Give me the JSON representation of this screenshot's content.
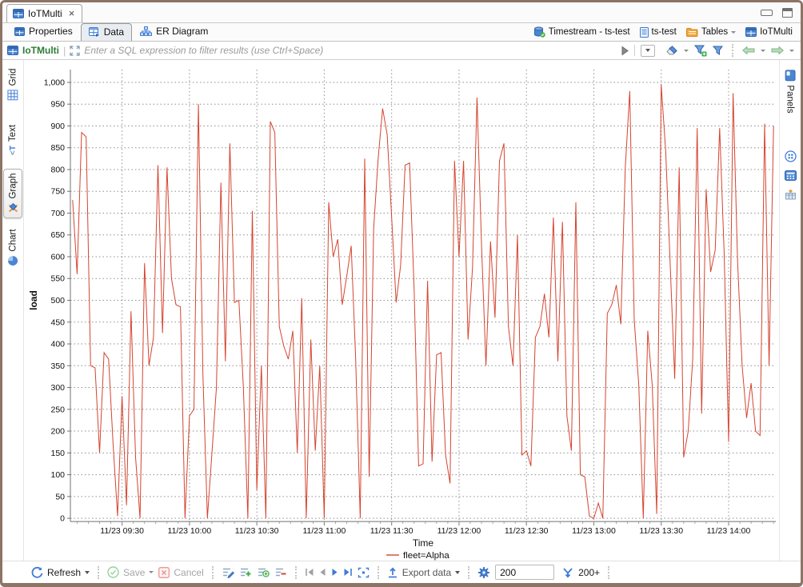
{
  "window": {
    "tab_title": "IoTMulti",
    "close_glyph": "×"
  },
  "subtabs": [
    {
      "label": "Properties",
      "active": false
    },
    {
      "label": "Data",
      "active": true
    },
    {
      "label": "ER Diagram",
      "active": false
    }
  ],
  "breadcrumb": [
    {
      "label": "Timestream - ts-test"
    },
    {
      "label": "ts-test"
    },
    {
      "label": "Tables"
    },
    {
      "label": "IoTMulti"
    }
  ],
  "filter_bar": {
    "entity": "IoTMulti",
    "placeholder": "Enter a SQL expression to filter results (use Ctrl+Space)"
  },
  "left_tabs": [
    {
      "label": "Grid",
      "active": false
    },
    {
      "label": "Text",
      "active": false
    },
    {
      "label": "Graph",
      "active": true
    },
    {
      "label": "Chart",
      "active": false
    }
  ],
  "right_panel": {
    "label": "Panels"
  },
  "toolbar": {
    "refresh_label": "Refresh",
    "save_label": "Save",
    "cancel_label": "Cancel",
    "export_label": "Export data",
    "fetch_size_value": "200",
    "fetch_more_label": "200+"
  },
  "chart_data": {
    "type": "line",
    "title": "",
    "xlabel": "Time",
    "ylabel": "load",
    "ylim": [
      0,
      1000
    ],
    "y_tick_step": 50,
    "grid": true,
    "legend_position": "bottom",
    "x_date": "11/23",
    "x_range_minutes": [
      547,
      861
    ],
    "x_ticks": [
      {
        "m": 570,
        "label": "11/23 09:30"
      },
      {
        "m": 600,
        "label": "11/23 10:00"
      },
      {
        "m": 630,
        "label": "11/23 10:30"
      },
      {
        "m": 660,
        "label": "11/23 11:00"
      },
      {
        "m": 690,
        "label": "11/23 11:30"
      },
      {
        "m": 720,
        "label": "11/23 12:00"
      },
      {
        "m": 750,
        "label": "11/23 12:30"
      },
      {
        "m": 780,
        "label": "11/23 13:00"
      },
      {
        "m": 810,
        "label": "11/23 13:30"
      },
      {
        "m": 840,
        "label": "11/23 14:00"
      }
    ],
    "series": [
      {
        "name": "fleet=Alpha",
        "color": "#d5442f",
        "start_minute": 548,
        "step_minutes": 2,
        "values": [
          730,
          560,
          885,
          875,
          350,
          345,
          150,
          380,
          365,
          170,
          5,
          280,
          30,
          475,
          140,
          0,
          585,
          350,
          415,
          810,
          425,
          805,
          550,
          490,
          485,
          0,
          235,
          250,
          950,
          330,
          0,
          150,
          300,
          770,
          360,
          860,
          495,
          500,
          300,
          0,
          705,
          65,
          350,
          0,
          910,
          885,
          440,
          395,
          365,
          430,
          150,
          505,
          0,
          410,
          155,
          350,
          0,
          725,
          600,
          640,
          490,
          555,
          625,
          365,
          0,
          825,
          95,
          665,
          825,
          940,
          880,
          690,
          495,
          580,
          810,
          815,
          525,
          120,
          125,
          545,
          130,
          375,
          380,
          145,
          80,
          820,
          600,
          820,
          410,
          575,
          965,
          630,
          350,
          635,
          460,
          820,
          860,
          440,
          350,
          650,
          145,
          155,
          120,
          415,
          440,
          515,
          415,
          690,
          360,
          680,
          235,
          155,
          725,
          100,
          95,
          5,
          0,
          35,
          0,
          470,
          490,
          535,
          445,
          805,
          980,
          455,
          305,
          0,
          430,
          305,
          10,
          995,
          840,
          580,
          320,
          805,
          140,
          200,
          365,
          895,
          240,
          755,
          565,
          615,
          895,
          610,
          175,
          975,
          590,
          350,
          230,
          310,
          200,
          190,
          905,
          350,
          900
        ]
      }
    ]
  }
}
